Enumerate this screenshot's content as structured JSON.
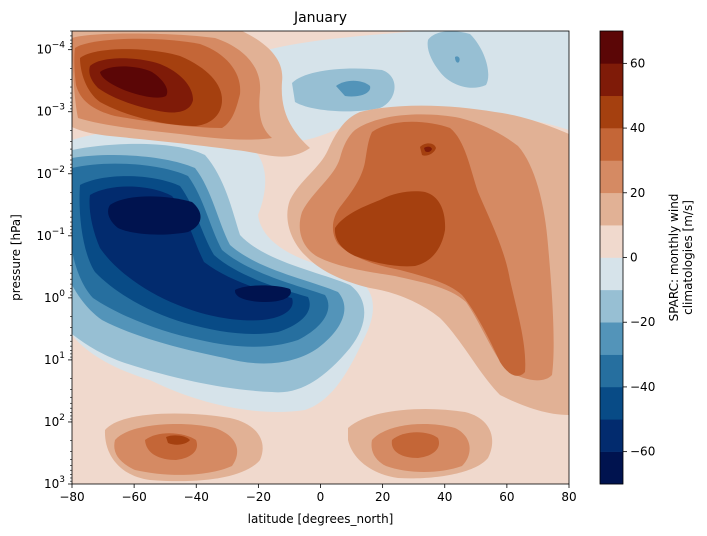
{
  "chart_data": {
    "type": "heatmap",
    "subtype": "filled-contour",
    "title": "January",
    "xlabel": "latitude [degrees_north]",
    "ylabel": "pressure [hPa]",
    "xlim": [
      -80,
      80
    ],
    "ylim": [
      1000,
      5e-05
    ],
    "yscale": "log",
    "y_inverted": true,
    "grid": false,
    "xticks": [
      {
        "value": -80,
        "label": "−80"
      },
      {
        "value": -60,
        "label": "−60"
      },
      {
        "value": -40,
        "label": "−40"
      },
      {
        "value": -20,
        "label": "−20"
      },
      {
        "value": 0,
        "label": "0"
      },
      {
        "value": 20,
        "label": "20"
      },
      {
        "value": 40,
        "label": "40"
      },
      {
        "value": 60,
        "label": "60"
      },
      {
        "value": 80,
        "label": "80"
      }
    ],
    "yticks": [
      {
        "value": 0.0001,
        "base": "10",
        "exp": "−4"
      },
      {
        "value": 0.001,
        "base": "10",
        "exp": "−3"
      },
      {
        "value": 0.01,
        "base": "10",
        "exp": "−2"
      },
      {
        "value": 0.1,
        "base": "10",
        "exp": "−1"
      },
      {
        "value": 1,
        "base": "10",
        "exp": "0"
      },
      {
        "value": 10,
        "base": "10",
        "exp": "1"
      },
      {
        "value": 100,
        "base": "10",
        "exp": "2"
      },
      {
        "value": 1000,
        "base": "10",
        "exp": "3"
      }
    ],
    "colorbar": {
      "label_lines": [
        "SPARC: monthly wind",
        "climatologies [m/s]"
      ],
      "levels": [
        -70,
        -60,
        -50,
        -40,
        -30,
        -20,
        -10,
        0,
        10,
        20,
        30,
        40,
        50,
        60,
        70
      ],
      "colors": [
        "#00134f",
        "#022b6e",
        "#084b86",
        "#266f9f",
        "#5394b9",
        "#97bfd3",
        "#d6e3ea",
        "#f0d9cd",
        "#e1b195",
        "#d58a63",
        "#c46637",
        "#a5400f",
        "#7f1b08",
        "#5b0606"
      ],
      "ticks": [
        {
          "value": 60,
          "label": "60"
        },
        {
          "value": 40,
          "label": "40"
        },
        {
          "value": 20,
          "label": "20"
        },
        {
          "value": 0,
          "label": "0"
        },
        {
          "value": -20,
          "label": "−20"
        },
        {
          "value": -40,
          "label": "−40"
        },
        {
          "value": -60,
          "label": "−60"
        }
      ]
    },
    "features": [
      {
        "name": "southern-hemisphere-easterly-jet",
        "lat": -52,
        "pressure_hPa": 0.06,
        "value": -70
      },
      {
        "name": "easterly-jet-lower-core",
        "lat": -18,
        "pressure_hPa": 0.8,
        "value": -70
      },
      {
        "name": "northern-mesospheric-westerlies",
        "lat": -55,
        "pressure_hPa": 0.0005,
        "value": 60
      },
      {
        "name": "northern-hemisphere-westerly-jet",
        "lat": 35,
        "pressure_hPa": 0.08,
        "value": 50
      },
      {
        "name": "upper-westerly-core",
        "lat": 37,
        "pressure_hPa": 0.015,
        "value": 60
      },
      {
        "name": "upper-easterly-patch",
        "lat": 10,
        "pressure_hPa": 0.0006,
        "value": -30
      },
      {
        "name": "high-latitude-easterly-patch",
        "lat": 44,
        "pressure_hPa": 0.00015,
        "value": -25
      },
      {
        "name": "southern-subtropical-jet",
        "lat": -48,
        "pressure_hPa": 200,
        "value": 30
      },
      {
        "name": "northern-subtropical-jet",
        "lat": 33,
        "pressure_hPa": 220,
        "value": 30
      }
    ]
  }
}
